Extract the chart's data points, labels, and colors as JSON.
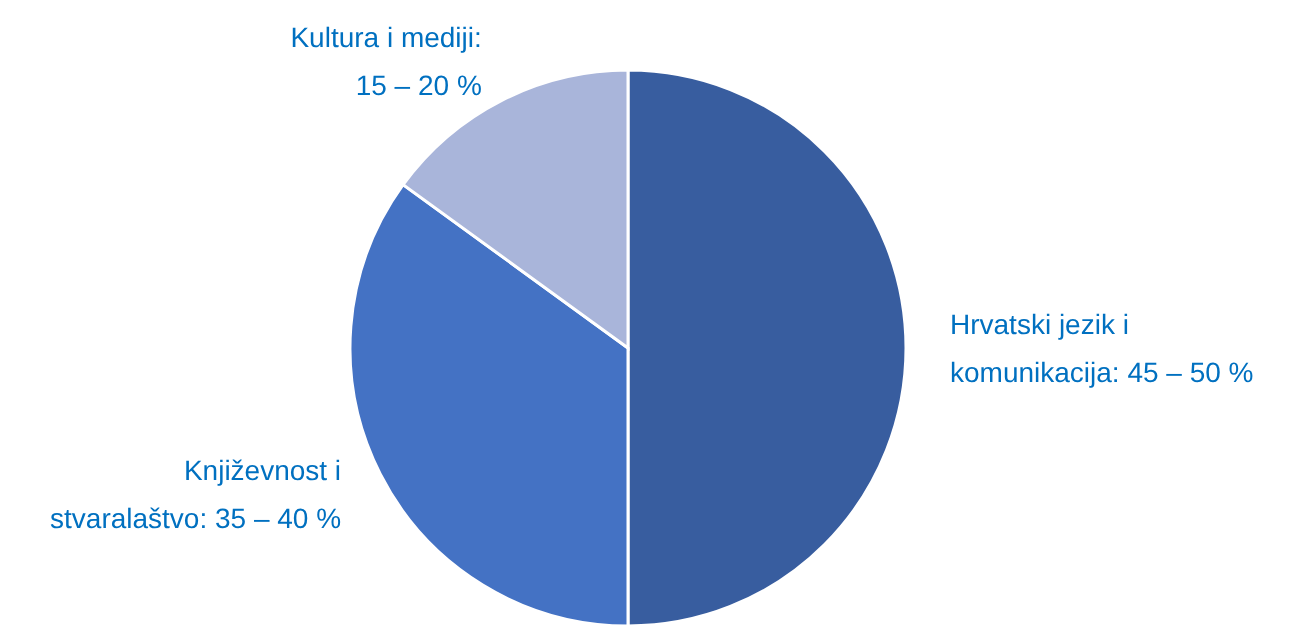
{
  "chart_data": {
    "type": "pie",
    "categories": [
      "Hrvatski jezik i komunikacija: 45 – 50 %",
      "Književnost i stvaralaštvo: 35 – 40 %",
      "Kultura i mediji: 15 – 20 %"
    ],
    "values": [
      50,
      35,
      15
    ],
    "colors": [
      "#385d9f",
      "#4472c4",
      "#a9b5da"
    ]
  }
}
